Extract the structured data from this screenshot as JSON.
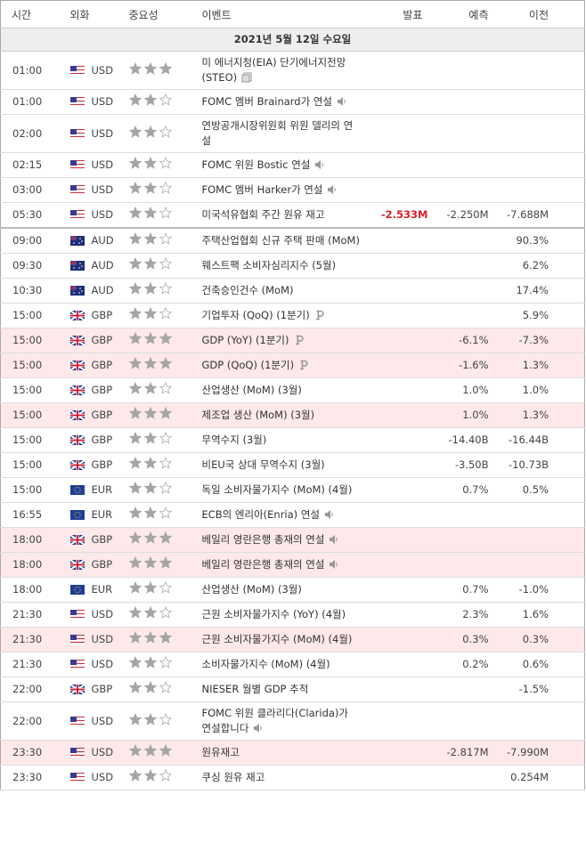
{
  "header": [
    "시간",
    "외화",
    "중요성",
    "이벤트",
    "발표",
    "예측",
    "이전"
  ],
  "date": "2021년 5월 12일 수요일",
  "rows": [
    {
      "time": "01:00",
      "currency": "USD",
      "importance": 3,
      "event": "미 에너지청(EIA) 단기에너지전망(STEO)"
    },
    {
      "time": "01:00",
      "currency": "USD",
      "importance": 2,
      "event": "FOMC 멤버 Brainard가 연설"
    },
    {
      "time": "02:00",
      "currency": "USD",
      "importance": 2,
      "event": "연방공개시장위원회 위원 델리의 연설"
    },
    {
      "time": "02:15",
      "currency": "USD",
      "importance": 2,
      "event": "FOMC 위원 Bostic 연설"
    },
    {
      "time": "03:00",
      "currency": "USD",
      "importance": 2,
      "event": "FOMC 멤버 Harker가 연설"
    },
    {
      "time": "05:30",
      "currency": "USD",
      "importance": 2,
      "event": "미국석유협회 주간 원유 재고",
      "actual": "-2.533M",
      "forecast": "-2.250M",
      "previous": "-7.688M"
    },
    {
      "time": "09:00",
      "currency": "AUD",
      "importance": 2,
      "event": "주택산업협회 신규 주택 판매 (MoM)",
      "previous": "90.3%"
    },
    {
      "time": "09:30",
      "currency": "AUD",
      "importance": 2,
      "event": "웨스트팩 소비자심리지수 (5월)",
      "previous": "6.2%"
    },
    {
      "time": "10:30",
      "currency": "AUD",
      "importance": 2,
      "event": "건축승인건수 (MoM)",
      "previous": "17.4%"
    },
    {
      "time": "15:00",
      "currency": "GBP",
      "importance": 2,
      "event": "기업투자 (QoQ) (1분기)",
      "previous": "5.9%"
    },
    {
      "time": "15:00",
      "currency": "GBP",
      "importance": 3,
      "event": "GDP (YoY) (1분기)",
      "forecast": "-6.1%",
      "previous": "-7.3%"
    },
    {
      "time": "15:00",
      "currency": "GBP",
      "importance": 3,
      "event": "GDP (QoQ) (1분기)",
      "forecast": "-1.6%",
      "previous": "1.3%"
    },
    {
      "time": "15:00",
      "currency": "GBP",
      "importance": 2,
      "event": "산업생산 (MoM) (3월)",
      "forecast": "1.0%",
      "previous": "1.0%"
    },
    {
      "time": "15:00",
      "currency": "GBP",
      "importance": 3,
      "event": "제조업 생산 (MoM) (3월)",
      "forecast": "1.0%",
      "previous": "1.3%"
    },
    {
      "time": "15:00",
      "currency": "GBP",
      "importance": 2,
      "event": "무역수지 (3월)",
      "forecast": "-14.40B",
      "previous": "-16.44B"
    },
    {
      "time": "15:00",
      "currency": "GBP",
      "importance": 2,
      "event": "비EU국 상대 무역수지 (3월)",
      "forecast": "-3.50B",
      "previous": "-10.73B"
    },
    {
      "time": "15:00",
      "currency": "EUR",
      "importance": 2,
      "event": "독일 소비자물가지수 (MoM) (4월)",
      "forecast": "0.7%",
      "previous": "0.5%"
    },
    {
      "time": "16:55",
      "currency": "EUR",
      "importance": 2,
      "event": "ECB의 엔리아(Enria) 연설"
    },
    {
      "time": "18:00",
      "currency": "GBP",
      "importance": 3,
      "event": "베일리 영란은행 총재의 연설"
    },
    {
      "time": "18:00",
      "currency": "GBP",
      "importance": 3,
      "event": "베일리 영란은행 총재의 연설"
    },
    {
      "time": "18:00",
      "currency": "EUR",
      "importance": 2,
      "event": "산업생산 (MoM) (3월)",
      "forecast": "0.7%",
      "previous": "-1.0%"
    },
    {
      "time": "21:30",
      "currency": "USD",
      "importance": 2,
      "event": "근원 소비자물가지수 (YoY) (4월)",
      "forecast": "2.3%",
      "previous": "1.6%"
    },
    {
      "time": "21:30",
      "currency": "USD",
      "importance": 3,
      "event": "근원 소비자물가지수 (MoM) (4월)",
      "forecast": "0.3%",
      "previous": "0.3%"
    },
    {
      "time": "21:30",
      "currency": "USD",
      "importance": 2,
      "event": "소비자물가지수 (MoM) (4월)",
      "forecast": "0.2%",
      "previous": "0.6%"
    },
    {
      "time": "22:00",
      "currency": "GBP",
      "importance": 2,
      "event": "NIESER 월별 GDP 추적",
      "previous": "-1.5%"
    },
    {
      "time": "22:00",
      "currency": "USD",
      "importance": 2,
      "event": "FOMC 위원 클라리다(Clarida)가 연설합니다"
    },
    {
      "time": "23:30",
      "currency": "USD",
      "importance": 3,
      "event": "원유재고",
      "forecast": "-2.817M",
      "previous": "-7.990M"
    },
    {
      "time": "23:30",
      "currency": "USD",
      "importance": 2,
      "event": "쿠싱 원유 재고",
      "previous": "0.254M"
    }
  ]
}
